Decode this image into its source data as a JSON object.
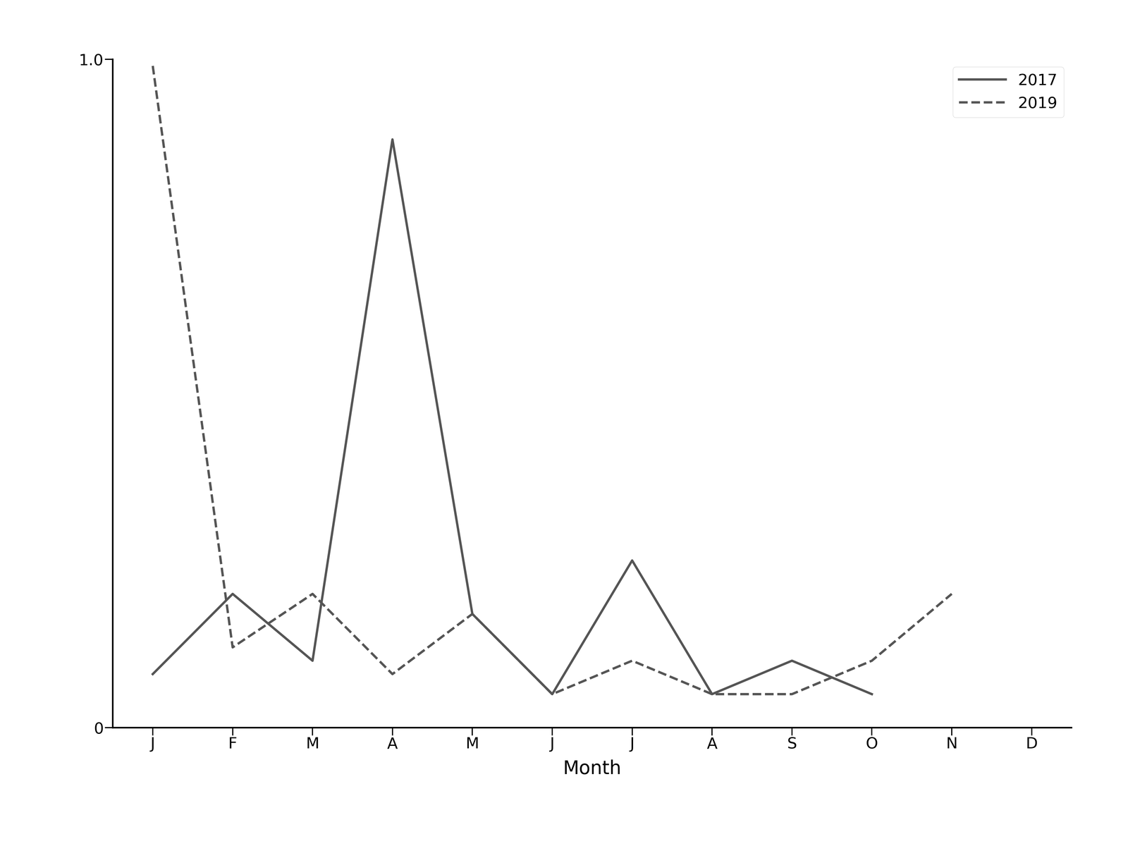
{
  "chart_data": {
    "type": "line",
    "x_label": "Month",
    "categories": [
      "J",
      "F",
      "M",
      "A",
      "M",
      "J",
      "J",
      "A",
      "S",
      "O",
      "N",
      "D"
    ],
    "series": [
      {
        "name": "2017",
        "color": "#555555",
        "line_style": "solid",
        "values": [
          0.08,
          0.2,
          0.1,
          0.88,
          0.17,
          0.05,
          0.25,
          0.05,
          0.1,
          0.05,
          null,
          null
        ]
      },
      {
        "name": "2019",
        "color": "#555555",
        "line_style": "dashed",
        "values": [
          0.99,
          0.12,
          0.2,
          0.08,
          0.17,
          0.05,
          0.1,
          0.05,
          0.05,
          0.1,
          0.2,
          null
        ]
      }
    ],
    "ylim": [
      0,
      1.0
    ],
    "yticks": [
      0,
      {
        "value": 1.0,
        "label": "1.0"
      }
    ],
    "legend": "upper right"
  }
}
